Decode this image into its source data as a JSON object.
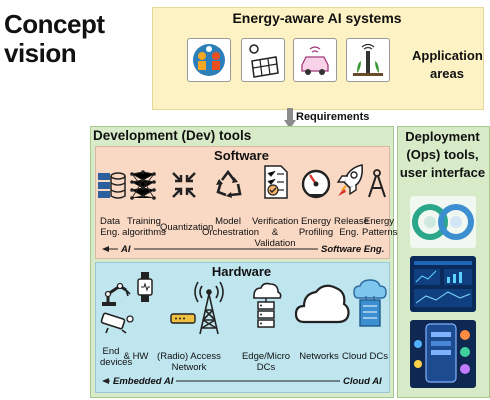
{
  "concept": {
    "line1": "Concept",
    "line2": "vision"
  },
  "top": {
    "title": "Energy-aware AI systems",
    "app_areas_line1": "Application",
    "app_areas_line2": "areas"
  },
  "requirements": "Requirements",
  "dev": {
    "title": "Development (Dev) tools"
  },
  "ops": {
    "line1": "Deployment",
    "line2": "(Ops) tools,",
    "line3": "user interface"
  },
  "software": {
    "title": "Software",
    "items": [
      {
        "l1": "Data",
        "l2": "Eng."
      },
      {
        "l1": "Training",
        "l2": "algorithms"
      },
      {
        "l1": "Quantization",
        "l2": ""
      },
      {
        "l1": "Model",
        "l2": "Orchestration"
      },
      {
        "l1": "Verification",
        "l2": "& Validation"
      },
      {
        "l1": "Energy",
        "l2": "Profiling"
      },
      {
        "l1": "Release",
        "l2": "Eng."
      },
      {
        "l1": "Energy",
        "l2": "Patterns"
      }
    ],
    "band_left": "AI",
    "band_right": "Software Eng."
  },
  "hardware": {
    "title": "Hardware",
    "items": [
      {
        "l1": "End",
        "l2": "devices"
      },
      {
        "l1": "& HW",
        "l2": ""
      },
      {
        "l1": "(Radio) Access Network",
        "l2": ""
      },
      {
        "l1": "Edge/Micro DCs",
        "l2": ""
      },
      {
        "l1": "Networks",
        "l2": ""
      },
      {
        "l1": "Cloud DCs",
        "l2": ""
      }
    ],
    "band_left": "Embedded AI",
    "band_right": "Cloud AI"
  },
  "colors": {
    "yellow_box": "#fdf2c4",
    "green_box": "#d8ebc8",
    "software_bg": "#f9d8c4",
    "hardware_bg": "#bfe5ef",
    "arrow_gray": "#8c8c8c"
  },
  "icons": {
    "app": [
      "people-gears-icon",
      "solar-panel-icon",
      "connected-car-icon",
      "smart-agriculture-icon"
    ],
    "software": [
      "database-icon",
      "neural-network-icon",
      "quantization-arrows-icon",
      "recycle-icon",
      "checklist-icon",
      "speed-gauge-icon",
      "rocket-icon",
      "compass-icon"
    ],
    "hardware": [
      "robot-arm-icon",
      "smartwatch-icon",
      "camera-icon",
      "router-icon",
      "radio-tower-icon",
      "server-cloud-icon",
      "cloud-icon",
      "cloud-datacenter-icon"
    ],
    "ops": [
      "circular-lifecycle-icon",
      "dashboard-icon",
      "mobile-app-icon"
    ]
  }
}
